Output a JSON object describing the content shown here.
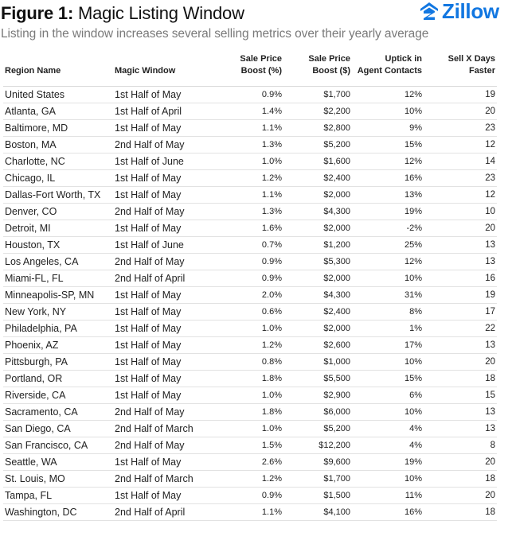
{
  "header": {
    "title_bold": "Figure 1:",
    "title_rest": " Magic Listing Window",
    "subtitle": "Listing in the window increases several selling metrics over their yearly average",
    "logo_text": "Zillow",
    "brand_color": "#1277e1"
  },
  "table": {
    "columns": {
      "region": "Region Name",
      "window": "Magic Window",
      "price_pct_line1": "Sale Price",
      "price_pct_line2": "Boost (%)",
      "price_usd_line1": "Sale Price",
      "price_usd_line2": "Boost ($)",
      "contacts_line1": "Uptick in",
      "contacts_line2": "Agent Contacts",
      "days_line1": "Sell X Days",
      "days_line2": "Faster"
    },
    "rows": [
      {
        "region": "United States",
        "window": "1st Half of May",
        "price_pct": "0.9%",
        "price_usd": "$1,700",
        "contacts": "12%",
        "days": "19"
      },
      {
        "region": "Atlanta, GA",
        "window": "1st Half of April",
        "price_pct": "1.4%",
        "price_usd": "$2,200",
        "contacts": "10%",
        "days": "20"
      },
      {
        "region": "Baltimore, MD",
        "window": "1st Half of May",
        "price_pct": "1.1%",
        "price_usd": "$2,800",
        "contacts": "9%",
        "days": "23"
      },
      {
        "region": "Boston, MA",
        "window": "2nd Half of May",
        "price_pct": "1.3%",
        "price_usd": "$5,200",
        "contacts": "15%",
        "days": "12"
      },
      {
        "region": "Charlotte, NC",
        "window": "1st Half of June",
        "price_pct": "1.0%",
        "price_usd": "$1,600",
        "contacts": "12%",
        "days": "14"
      },
      {
        "region": "Chicago, IL",
        "window": "1st Half of May",
        "price_pct": "1.2%",
        "price_usd": "$2,400",
        "contacts": "16%",
        "days": "23"
      },
      {
        "region": "Dallas-Fort Worth, TX",
        "window": "1st Half of May",
        "price_pct": "1.1%",
        "price_usd": "$2,000",
        "contacts": "13%",
        "days": "12"
      },
      {
        "region": "Denver, CO",
        "window": "2nd Half of May",
        "price_pct": "1.3%",
        "price_usd": "$4,300",
        "contacts": "19%",
        "days": "10"
      },
      {
        "region": "Detroit, MI",
        "window": "1st Half of May",
        "price_pct": "1.6%",
        "price_usd": "$2,000",
        "contacts": "-2%",
        "days": "20"
      },
      {
        "region": "Houston, TX",
        "window": "1st Half of June",
        "price_pct": "0.7%",
        "price_usd": "$1,200",
        "contacts": "25%",
        "days": "13"
      },
      {
        "region": "Los Angeles, CA",
        "window": "2nd Half of May",
        "price_pct": "0.9%",
        "price_usd": "$5,300",
        "contacts": "12%",
        "days": "13"
      },
      {
        "region": "Miami-FL, FL",
        "window": "2nd Half of April",
        "price_pct": "0.9%",
        "price_usd": "$2,000",
        "contacts": "10%",
        "days": "16"
      },
      {
        "region": "Minneapolis-SP, MN",
        "window": "1st Half of May",
        "price_pct": "2.0%",
        "price_usd": "$4,300",
        "contacts": "31%",
        "days": "19"
      },
      {
        "region": "New York, NY",
        "window": "1st Half of May",
        "price_pct": "0.6%",
        "price_usd": "$2,400",
        "contacts": "8%",
        "days": "17"
      },
      {
        "region": "Philadelphia, PA",
        "window": "1st Half of May",
        "price_pct": "1.0%",
        "price_usd": "$2,000",
        "contacts": "1%",
        "days": "22"
      },
      {
        "region": "Phoenix, AZ",
        "window": "1st Half of May",
        "price_pct": "1.2%",
        "price_usd": "$2,600",
        "contacts": "17%",
        "days": "13"
      },
      {
        "region": "Pittsburgh, PA",
        "window": "1st Half of May",
        "price_pct": "0.8%",
        "price_usd": "$1,000",
        "contacts": "10%",
        "days": "20"
      },
      {
        "region": "Portland, OR",
        "window": "1st Half of May",
        "price_pct": "1.8%",
        "price_usd": "$5,500",
        "contacts": "15%",
        "days": "18"
      },
      {
        "region": "Riverside, CA",
        "window": "1st Half of May",
        "price_pct": "1.0%",
        "price_usd": "$2,900",
        "contacts": "6%",
        "days": "15"
      },
      {
        "region": "Sacramento, CA",
        "window": "2nd Half of May",
        "price_pct": "1.8%",
        "price_usd": "$6,000",
        "contacts": "10%",
        "days": "13"
      },
      {
        "region": "San Diego, CA",
        "window": "2nd Half of March",
        "price_pct": "1.0%",
        "price_usd": "$5,200",
        "contacts": "4%",
        "days": "13"
      },
      {
        "region": "San Francisco, CA",
        "window": "2nd Half of May",
        "price_pct": "1.5%",
        "price_usd": "$12,200",
        "contacts": "4%",
        "days": "8"
      },
      {
        "region": "Seattle, WA",
        "window": "1st Half of May",
        "price_pct": "2.6%",
        "price_usd": "$9,600",
        "contacts": "19%",
        "days": "20"
      },
      {
        "region": "St. Louis, MO",
        "window": "2nd Half of March",
        "price_pct": "1.2%",
        "price_usd": "$1,700",
        "contacts": "10%",
        "days": "18"
      },
      {
        "region": "Tampa, FL",
        "window": "1st Half of May",
        "price_pct": "0.9%",
        "price_usd": "$1,500",
        "contacts": "11%",
        "days": "20"
      },
      {
        "region": "Washington, DC",
        "window": "2nd Half of April",
        "price_pct": "1.1%",
        "price_usd": "$4,100",
        "contacts": "16%",
        "days": "18"
      }
    ]
  }
}
